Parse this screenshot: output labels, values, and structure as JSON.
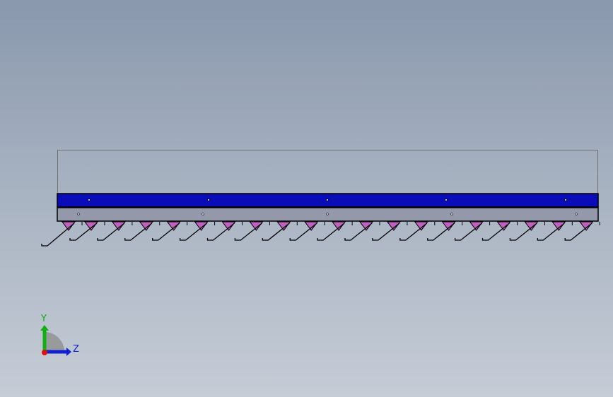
{
  "viewport": {
    "model": "comb-strip-assembly",
    "colors": {
      "top_bar": "#0a0cb8",
      "lower_bar": "#9399ab",
      "teeth": "#c060c0",
      "background_top": "#8998ad",
      "background_bottom": "#c5ccd6"
    }
  },
  "triad": {
    "y_label": "Y",
    "z_label": "Z",
    "colors": {
      "y": "#10b010",
      "z": "#1020d0",
      "x": "#e01010"
    }
  }
}
